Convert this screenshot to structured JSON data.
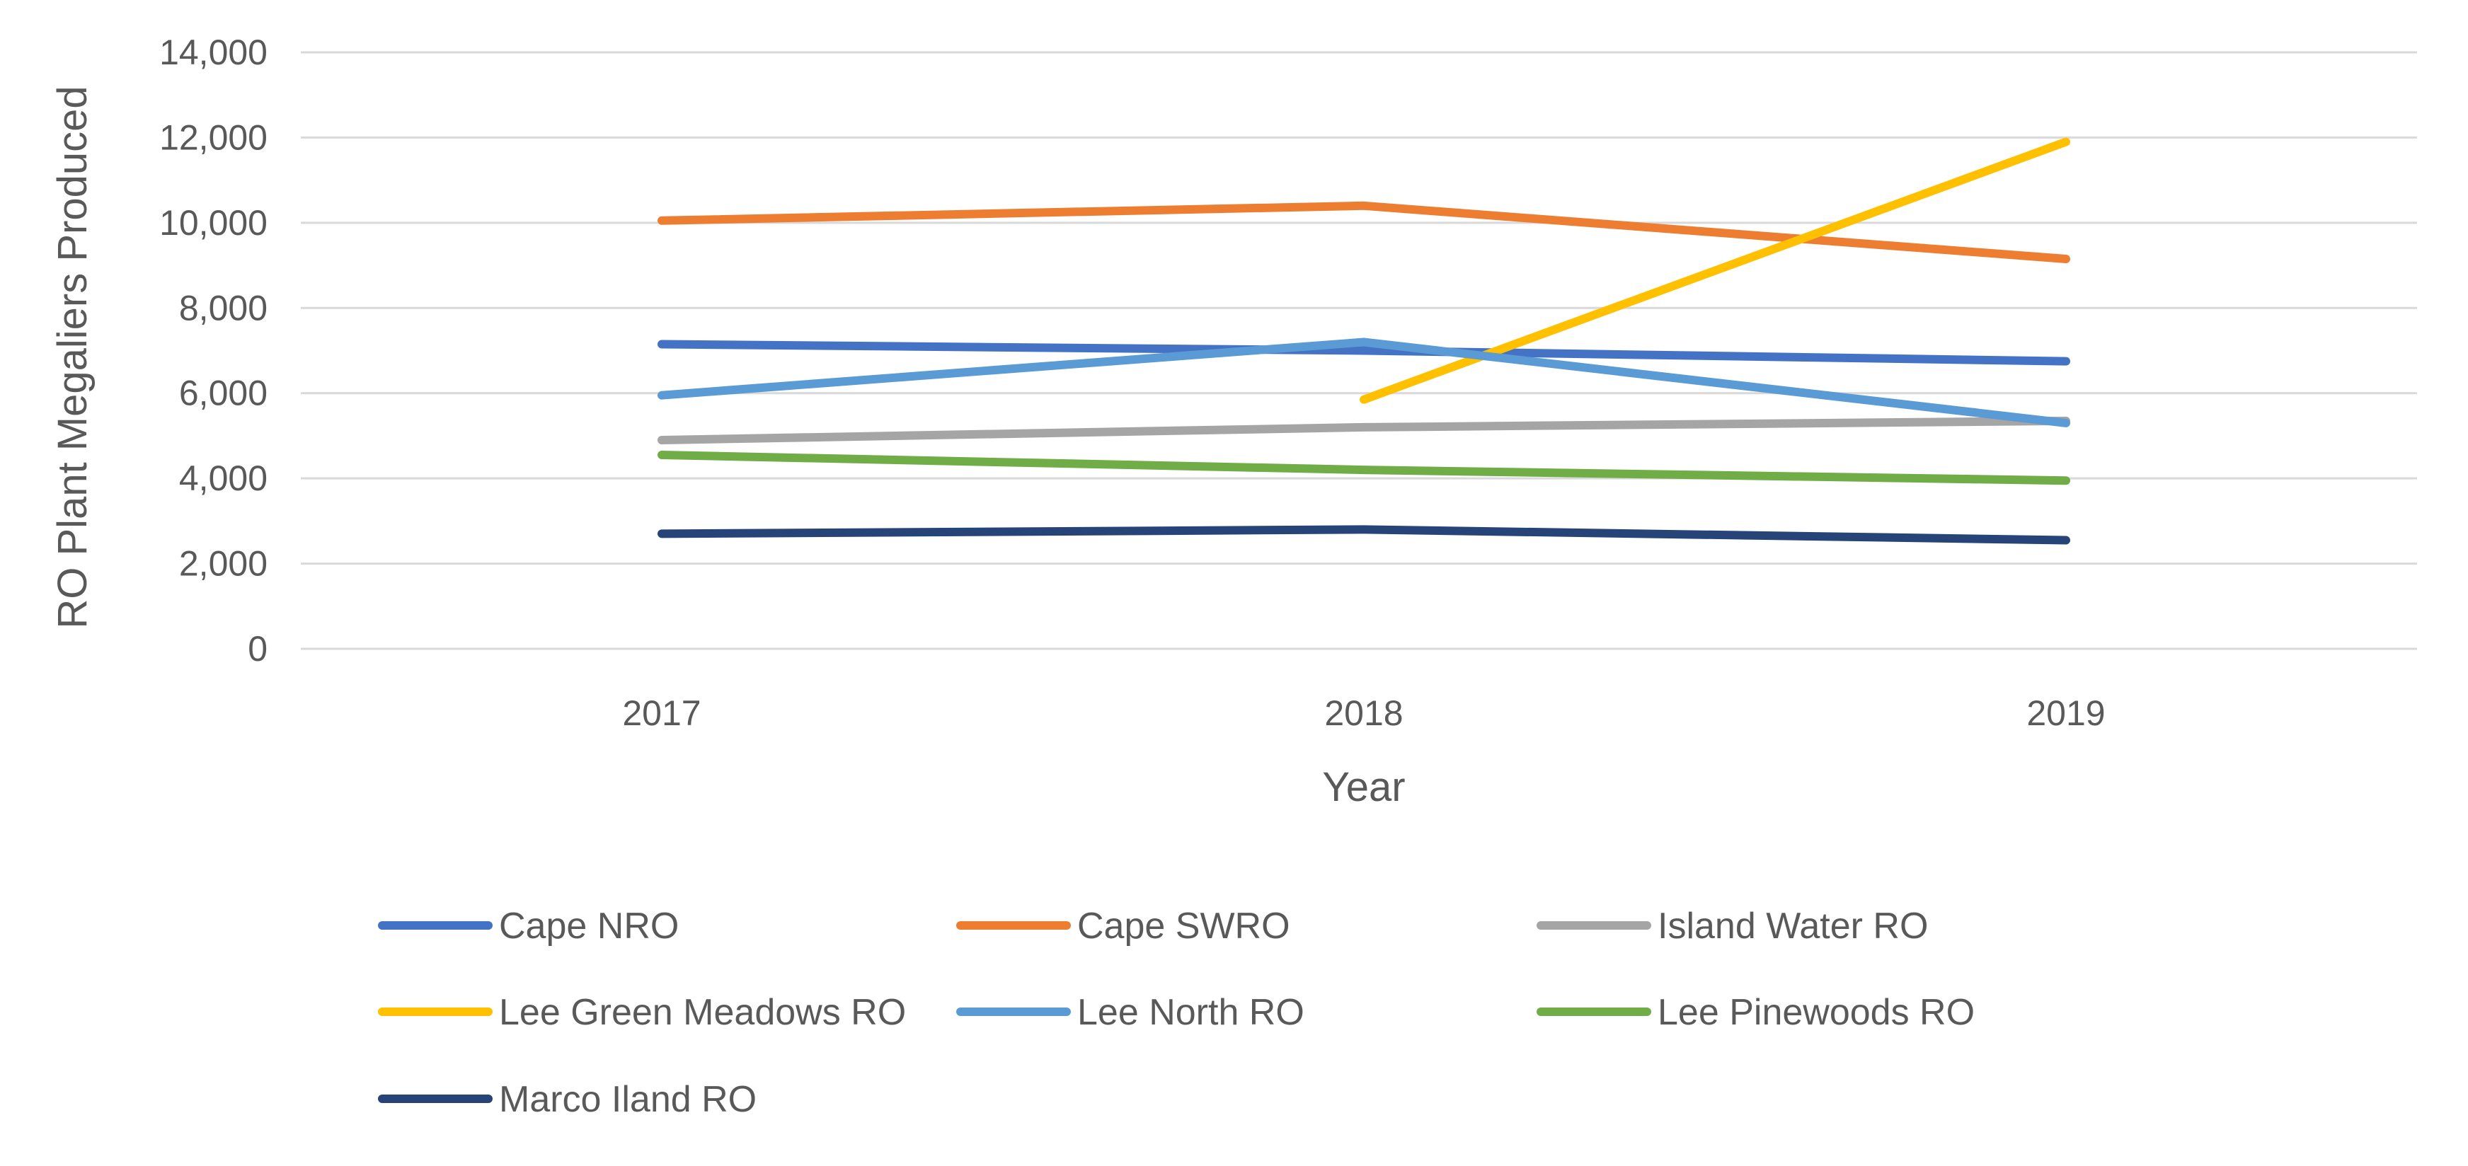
{
  "chart_data": {
    "type": "line",
    "title": "",
    "xlabel": "Year",
    "ylabel": "RO Plant Megaliers Produced",
    "categories": [
      "2017",
      "2018",
      "2019"
    ],
    "ylim": [
      0,
      14000
    ],
    "yticks": [
      0,
      2000,
      4000,
      6000,
      8000,
      10000,
      12000,
      14000
    ],
    "ytick_labels": [
      "0",
      "2,000",
      "4,000",
      "6,000",
      "8,000",
      "10,000",
      "12,000",
      "14,000"
    ],
    "grid": true,
    "legend_position": "bottom",
    "series": [
      {
        "name": "Cape NRO",
        "color": "#4472C4",
        "values": [
          7150,
          7000,
          6750
        ]
      },
      {
        "name": "Cape SWRO",
        "color": "#ED7D31",
        "values": [
          10050,
          10400,
          9150
        ]
      },
      {
        "name": "Island Water RO",
        "color": "#A5A5A5",
        "values": [
          4900,
          5200,
          5350
        ]
      },
      {
        "name": "Lee Green Meadows RO",
        "color": "#FFC000",
        "values": [
          null,
          5850,
          11900
        ]
      },
      {
        "name": "Lee North RO",
        "color": "#5B9BD5",
        "values": [
          5950,
          7200,
          5300
        ]
      },
      {
        "name": "Lee Pinewoods RO",
        "color": "#70AD47",
        "values": [
          4550,
          4200,
          3950
        ]
      },
      {
        "name": "Marco Iland RO",
        "color": "#264478",
        "values": [
          2700,
          2800,
          2550
        ]
      }
    ]
  }
}
